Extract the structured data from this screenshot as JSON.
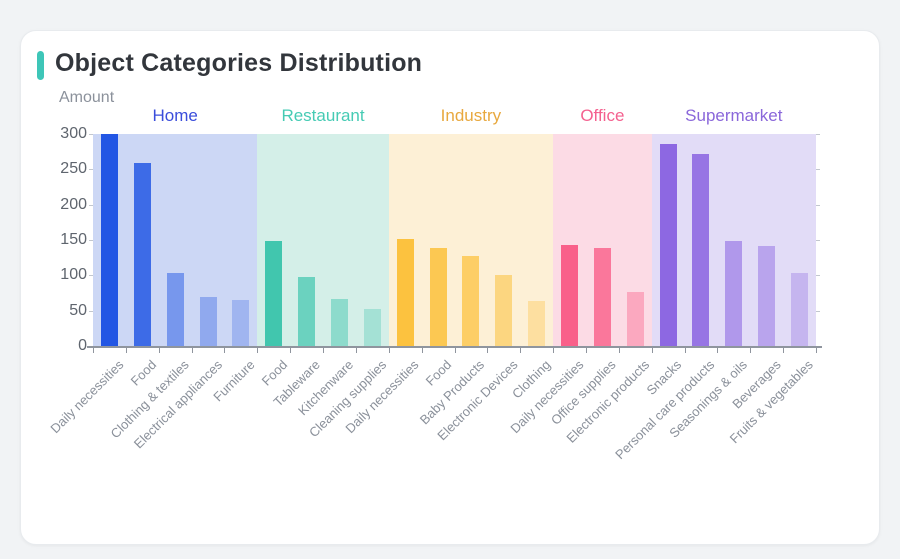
{
  "card": {
    "title": "Object Categories Distribution"
  },
  "theme": {
    "accent_color": "#3ec6b8",
    "page_bg": "#f1f3f5",
    "card_bg": "#ffffff",
    "title_color": "#32363c",
    "axis_line_color": "#8f959e",
    "axis_text_color": "#5f656e",
    "x_label_color": "#8a909a"
  },
  "chart_data": {
    "type": "bar",
    "title": "Object Categories Distribution",
    "xlabel": "",
    "ylabel": "Amount",
    "ylim": [
      0,
      300
    ],
    "y_ticks": [
      0,
      50,
      100,
      150,
      200,
      250,
      300
    ],
    "grid": false,
    "legend_position": "group-headers-top",
    "groups": [
      {
        "name": "Home",
        "label_color": "#3a4ddb",
        "bar_color": "#2256e4",
        "band_color": "#ccd7f5",
        "categories": [
          "Daily necessities",
          "Food",
          "Clothing & textiles",
          "Electrical appliances",
          "Furniture"
        ],
        "values": [
          300,
          259,
          103,
          70,
          65
        ]
      },
      {
        "name": "Restaurant",
        "label_color": "#46cbb4",
        "bar_color": "#41c6ae",
        "band_color": "#d4efe8",
        "categories": [
          "Food",
          "Tableware",
          "Kitchenware",
          "Cleaning supplies"
        ],
        "values": [
          149,
          98,
          66,
          52
        ]
      },
      {
        "name": "Industry",
        "label_color": "#e8a83e",
        "bar_color": "#fcc23f",
        "band_color": "#fdf0d6",
        "categories": [
          "Daily necessities",
          "Food",
          "Baby Products",
          "Electronic Devices",
          "Clothing"
        ],
        "values": [
          151,
          139,
          127,
          100,
          64
        ]
      },
      {
        "name": "Office",
        "label_color": "#f4618f",
        "bar_color": "#f9608a",
        "band_color": "#fcdbe5",
        "categories": [
          "Daily necessities",
          "Office supplies",
          "Electronic products"
        ],
        "values": [
          143,
          139,
          76
        ]
      },
      {
        "name": "Supermarket",
        "label_color": "#8a67da",
        "bar_color": "#8d68e2",
        "band_color": "#e2dcf7",
        "categories": [
          "Snacks",
          "Personal care products",
          "Seasonings & oils",
          "Beverages",
          "Fruits & vegetables"
        ],
        "values": [
          286,
          272,
          149,
          141,
          103
        ]
      }
    ]
  }
}
